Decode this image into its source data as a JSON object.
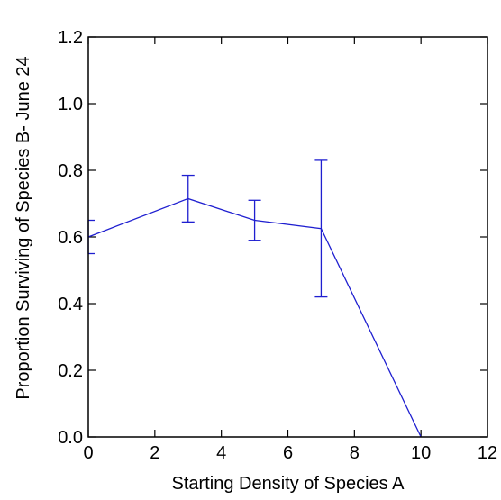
{
  "chart_data": {
    "type": "line",
    "xlabel": "Starting Density of Species A",
    "ylabel": "Proportion Surviving of Species B- June 24",
    "xlim": [
      0,
      12
    ],
    "ylim": [
      0.0,
      1.2
    ],
    "x_ticks": [
      0,
      2,
      4,
      6,
      8,
      10,
      12
    ],
    "x_tick_labels": [
      "0",
      "2",
      "4",
      "6",
      "8",
      "10",
      "12"
    ],
    "y_ticks": [
      0.0,
      0.2,
      0.4,
      0.6,
      0.8,
      1.0,
      1.2
    ],
    "y_tick_labels": [
      "0.0",
      "0.2",
      "0.4",
      "0.6",
      "0.8",
      "1.0",
      "1.2"
    ],
    "grid": false,
    "series": [
      {
        "color": "#1f1fd0",
        "points": [
          {
            "x": 0,
            "y": 0.6,
            "err_low": 0.55,
            "err_high": 0.65
          },
          {
            "x": 3,
            "y": 0.715,
            "err_low": 0.645,
            "err_high": 0.785
          },
          {
            "x": 5,
            "y": 0.65,
            "err_low": 0.59,
            "err_high": 0.71
          },
          {
            "x": 7,
            "y": 0.625,
            "err_low": 0.42,
            "err_high": 0.83
          },
          {
            "x": 10,
            "y": 0.0,
            "err_low": 0.0,
            "err_high": 0.0
          }
        ]
      }
    ]
  }
}
